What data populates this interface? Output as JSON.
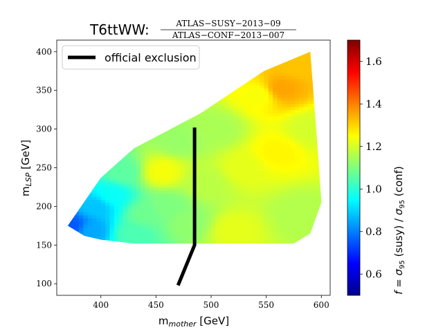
{
  "chart_data": {
    "type": "heatmap",
    "title": "T6ttWW:",
    "title_fraction": {
      "numerator": "ATLAS−SUSY−2013−09",
      "denominator": "ATLAS−CONF−2013−007"
    },
    "xlabel": "m",
    "xlabel_sub": "mother",
    "xlabel_unit": " [GeV]",
    "ylabel": "m",
    "ylabel_sub": "LSP",
    "ylabel_unit": " [GeV]",
    "xlim": [
      360,
      608
    ],
    "ylim": [
      85,
      415
    ],
    "x_ticks": [
      400,
      450,
      500,
      550,
      600
    ],
    "y_ticks": [
      100,
      150,
      200,
      250,
      300,
      350,
      400
    ],
    "colorbar": {
      "label": "f = σ₉₅ (susy) / σ₉₅ (conf)",
      "label_parts": [
        "f",
        " = ",
        "σ",
        "95",
        " (susy) / ",
        "σ",
        "95",
        " (conf)"
      ],
      "range": [
        0.5,
        1.7
      ],
      "ticks": [
        0.6,
        0.8,
        1.0,
        1.2,
        1.4,
        1.6
      ],
      "colormap": "jet"
    },
    "region_outline": [
      [
        370,
        175
      ],
      [
        385,
        162
      ],
      [
        400,
        157
      ],
      [
        430,
        152
      ],
      [
        575,
        152
      ],
      [
        590,
        165
      ],
      [
        600,
        205
      ],
      [
        597,
        268
      ],
      [
        590,
        400
      ],
      [
        548,
        375
      ],
      [
        490,
        320
      ],
      [
        430,
        275
      ],
      [
        400,
        237
      ]
    ],
    "value_samples": [
      {
        "x": 375,
        "y": 175,
        "v": 0.75
      },
      {
        "x": 390,
        "y": 170,
        "v": 0.85
      },
      {
        "x": 395,
        "y": 200,
        "v": 0.88
      },
      {
        "x": 410,
        "y": 215,
        "v": 0.96
      },
      {
        "x": 430,
        "y": 165,
        "v": 1.04
      },
      {
        "x": 420,
        "y": 245,
        "v": 1.06
      },
      {
        "x": 455,
        "y": 245,
        "v": 1.24
      },
      {
        "x": 460,
        "y": 200,
        "v": 1.1
      },
      {
        "x": 480,
        "y": 180,
        "v": 1.12
      },
      {
        "x": 470,
        "y": 285,
        "v": 1.13
      },
      {
        "x": 505,
        "y": 300,
        "v": 1.15
      },
      {
        "x": 520,
        "y": 170,
        "v": 1.22
      },
      {
        "x": 530,
        "y": 250,
        "v": 1.22
      },
      {
        "x": 545,
        "y": 345,
        "v": 1.24
      },
      {
        "x": 562,
        "y": 352,
        "v": 1.36
      },
      {
        "x": 575,
        "y": 385,
        "v": 1.32
      },
      {
        "x": 560,
        "y": 270,
        "v": 1.26
      },
      {
        "x": 580,
        "y": 190,
        "v": 1.16
      },
      {
        "x": 590,
        "y": 300,
        "v": 1.2
      },
      {
        "x": 495,
        "y": 230,
        "v": 1.17
      },
      {
        "x": 440,
        "y": 190,
        "v": 1.08
      }
    ],
    "series": [
      {
        "name": "official exclusion",
        "color": "#000000",
        "x": [
          470,
          485,
          485
        ],
        "y": [
          98,
          150,
          302
        ]
      }
    ],
    "legend_location": "upper-left"
  }
}
